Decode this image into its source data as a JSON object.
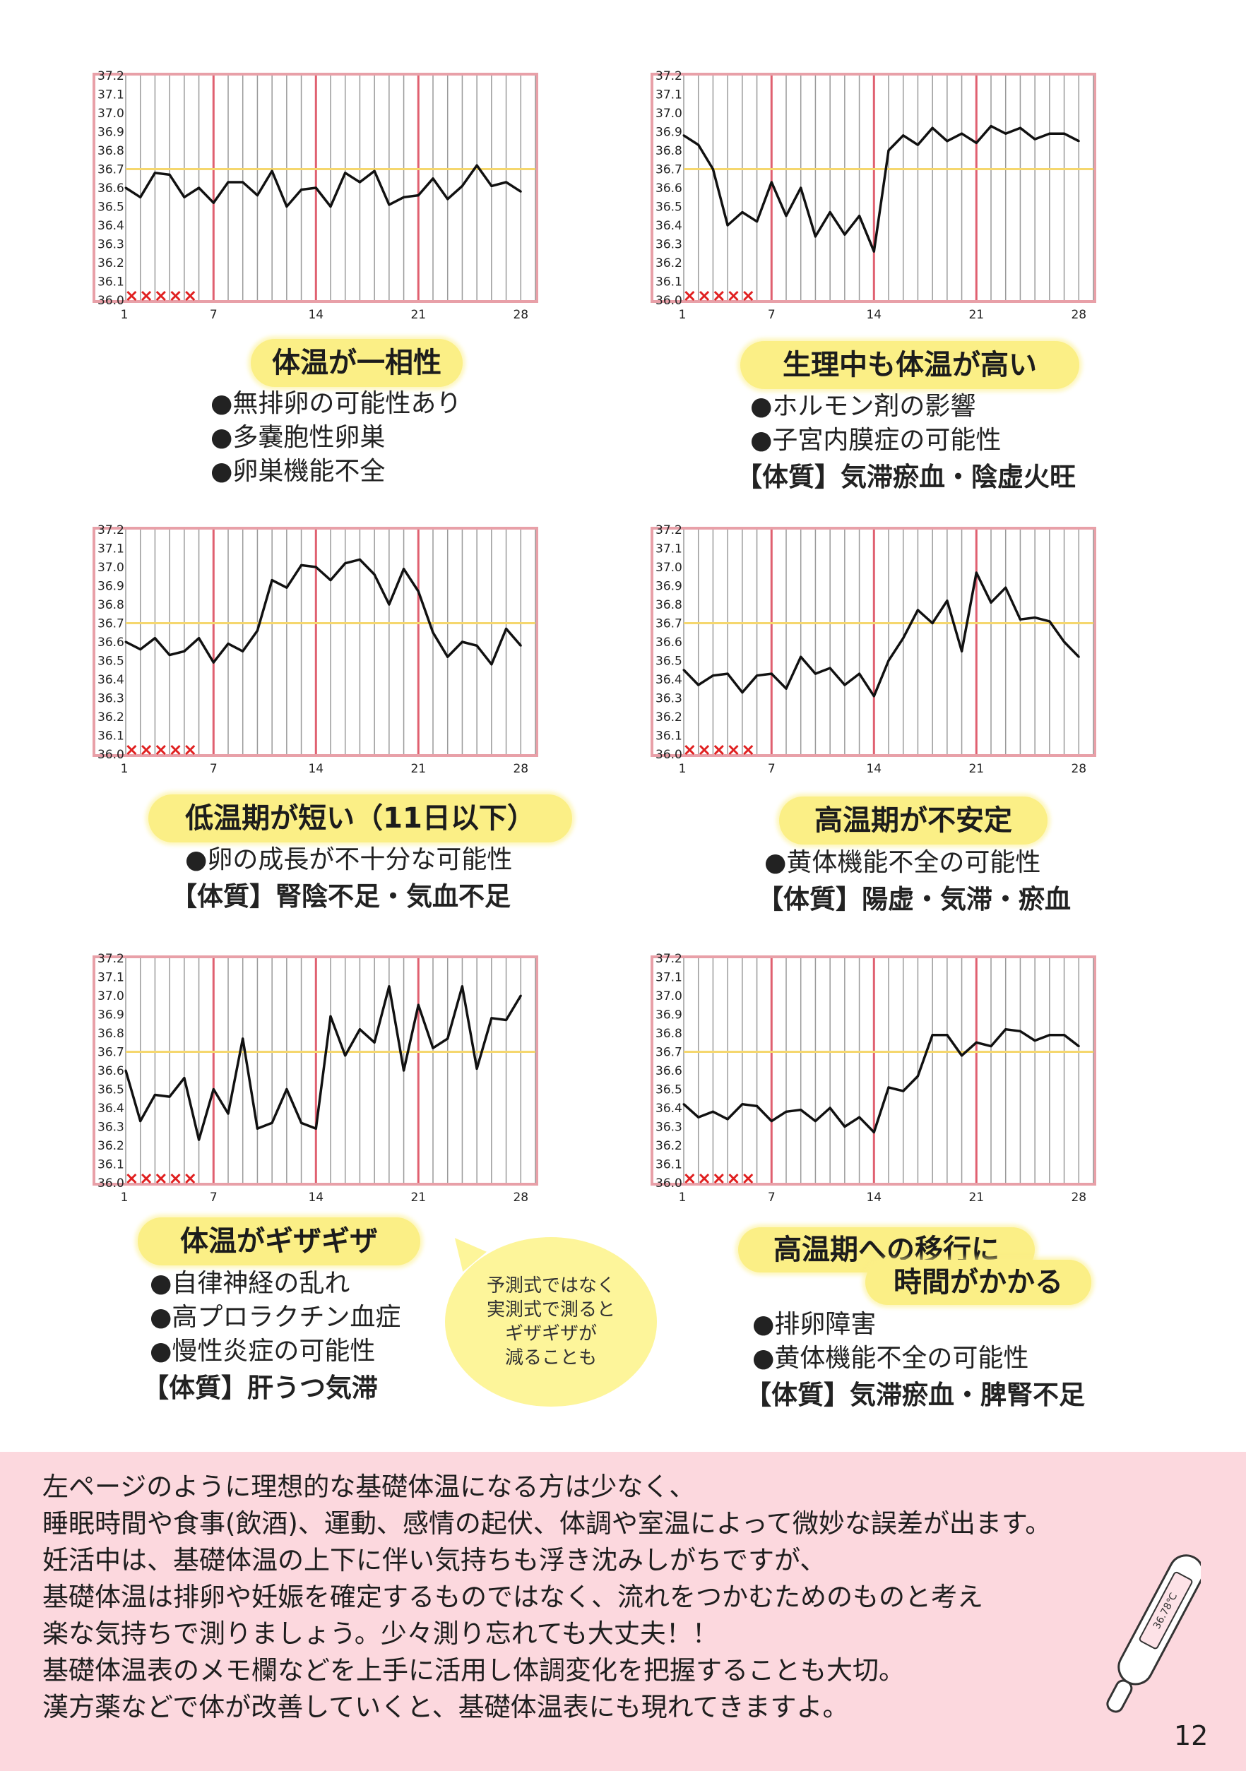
{
  "chart_data": [
    {
      "type": "line",
      "x": [
        1,
        2,
        3,
        4,
        5,
        6,
        7,
        8,
        9,
        10,
        11,
        12,
        13,
        14,
        15,
        16,
        17,
        18,
        19,
        20,
        21,
        22,
        23,
        24,
        25,
        26,
        27,
        28
      ],
      "series": [
        {
          "values": [
            36.6,
            36.55,
            36.68,
            36.67,
            36.55,
            36.6,
            36.52,
            36.63,
            36.63,
            36.56,
            36.69,
            36.5,
            36.59,
            36.6,
            36.5,
            36.68,
            36.63,
            36.69,
            36.51,
            36.55,
            36.56,
            36.65,
            36.54,
            36.61,
            36.72,
            36.61,
            36.63,
            36.58
          ]
        }
      ],
      "ylim": [
        36.0,
        37.2
      ],
      "yticks": [
        "37.2",
        "37.1",
        "37.0",
        "36.9",
        "36.8",
        "36.7",
        "36.6",
        "36.5",
        "36.4",
        "36.3",
        "36.2",
        "36.1",
        "36.0"
      ],
      "xticks": [
        "1",
        "7",
        "14",
        "21",
        "28"
      ],
      "reference_line": 36.7,
      "period_marks": 5,
      "title": "体温が一相性",
      "notes": [
        "●無排卵の可能性あり",
        "●多嚢胞性卵巣",
        "●卵巣機能不全"
      ],
      "constitution": ""
    },
    {
      "type": "line",
      "x": [
        1,
        2,
        3,
        4,
        5,
        6,
        7,
        8,
        9,
        10,
        11,
        12,
        13,
        14,
        15,
        16,
        17,
        18,
        19,
        20,
        21,
        22,
        23,
        24,
        25,
        26,
        27,
        28
      ],
      "series": [
        {
          "values": [
            36.88,
            36.83,
            36.7,
            36.4,
            36.47,
            36.42,
            36.63,
            36.45,
            36.6,
            36.34,
            36.47,
            36.35,
            36.45,
            36.26,
            36.8,
            36.88,
            36.83,
            36.92,
            36.85,
            36.89,
            36.84,
            36.93,
            36.89,
            36.92,
            36.86,
            36.89,
            36.89,
            36.85
          ]
        }
      ],
      "ylim": [
        36.0,
        37.2
      ],
      "yticks": [
        "37.2",
        "37.1",
        "37.0",
        "36.9",
        "36.8",
        "36.7",
        "36.6",
        "36.5",
        "36.4",
        "36.3",
        "36.2",
        "36.1",
        "36.0"
      ],
      "xticks": [
        "1",
        "7",
        "14",
        "21",
        "28"
      ],
      "reference_line": 36.7,
      "period_marks": 5,
      "title": "生理中も体温が高い",
      "notes": [
        "●ホルモン剤の影響",
        "●子宮内膜症の可能性"
      ],
      "constitution": "【体質】気滞瘀血・陰虚火旺"
    },
    {
      "type": "line",
      "x": [
        1,
        2,
        3,
        4,
        5,
        6,
        7,
        8,
        9,
        10,
        11,
        12,
        13,
        14,
        15,
        16,
        17,
        18,
        19,
        20,
        21,
        22,
        23,
        24,
        25,
        26,
        27,
        28
      ],
      "series": [
        {
          "values": [
            36.6,
            36.56,
            36.62,
            36.53,
            36.55,
            36.62,
            36.49,
            36.59,
            36.55,
            36.66,
            36.93,
            36.89,
            37.01,
            37.0,
            36.93,
            37.02,
            37.04,
            36.96,
            36.8,
            36.99,
            36.87,
            36.65,
            36.52,
            36.6,
            36.58,
            36.48,
            36.67,
            36.58
          ]
        }
      ],
      "ylim": [
        36.0,
        37.2
      ],
      "yticks": [
        "37.2",
        "37.1",
        "37.0",
        "36.9",
        "36.8",
        "36.7",
        "36.6",
        "36.5",
        "36.4",
        "36.3",
        "36.2",
        "36.1",
        "36.0"
      ],
      "xticks": [
        "1",
        "7",
        "14",
        "21",
        "28"
      ],
      "reference_line": 36.7,
      "period_marks": 5,
      "title": "低温期が短い（11日以下）",
      "notes": [
        "●卵の成長が不十分な可能性"
      ],
      "constitution": "【体質】腎陰不足・気血不足"
    },
    {
      "type": "line",
      "x": [
        1,
        2,
        3,
        4,
        5,
        6,
        7,
        8,
        9,
        10,
        11,
        12,
        13,
        14,
        15,
        16,
        17,
        18,
        19,
        20,
        21,
        22,
        23,
        24,
        25,
        26,
        27,
        28
      ],
      "series": [
        {
          "values": [
            36.45,
            36.37,
            36.42,
            36.43,
            36.33,
            36.42,
            36.43,
            36.35,
            36.52,
            36.43,
            36.46,
            36.37,
            36.43,
            36.31,
            36.5,
            36.62,
            36.77,
            36.7,
            36.82,
            36.55,
            36.97,
            36.81,
            36.89,
            36.72,
            36.73,
            36.71,
            36.6,
            36.52
          ]
        }
      ],
      "ylim": [
        36.0,
        37.2
      ],
      "yticks": [
        "37.2",
        "37.1",
        "37.0",
        "36.9",
        "36.8",
        "36.7",
        "36.6",
        "36.5",
        "36.4",
        "36.3",
        "36.2",
        "36.1",
        "36.0"
      ],
      "xticks": [
        "1",
        "7",
        "14",
        "21",
        "28"
      ],
      "reference_line": 36.7,
      "period_marks": 5,
      "title": "高温期が不安定",
      "notes": [
        "●黄体機能不全の可能性"
      ],
      "constitution": "【体質】陽虚・気滞・瘀血"
    },
    {
      "type": "line",
      "x": [
        1,
        2,
        3,
        4,
        5,
        6,
        7,
        8,
        9,
        10,
        11,
        12,
        13,
        14,
        15,
        16,
        17,
        18,
        19,
        20,
        21,
        22,
        23,
        24,
        25,
        26,
        27,
        28
      ],
      "series": [
        {
          "values": [
            36.6,
            36.33,
            36.47,
            36.46,
            36.56,
            36.23,
            36.5,
            36.37,
            36.77,
            36.29,
            36.32,
            36.5,
            36.32,
            36.29,
            36.89,
            36.68,
            36.82,
            36.75,
            37.05,
            36.6,
            36.95,
            36.72,
            36.77,
            37.05,
            36.61,
            36.88,
            36.87,
            37.0
          ]
        }
      ],
      "ylim": [
        36.0,
        37.2
      ],
      "yticks": [
        "37.2",
        "37.1",
        "37.0",
        "36.9",
        "36.8",
        "36.7",
        "36.6",
        "36.5",
        "36.4",
        "36.3",
        "36.2",
        "36.1",
        "36.0"
      ],
      "xticks": [
        "1",
        "7",
        "14",
        "21",
        "28"
      ],
      "reference_line": 36.7,
      "period_marks": 5,
      "title": "体温がギザギザ",
      "notes": [
        "●自律神経の乱れ",
        "●高プロラクチン血症",
        "●慢性炎症の可能性"
      ],
      "constitution": "【体質】肝うつ気滞"
    },
    {
      "type": "line",
      "x": [
        1,
        2,
        3,
        4,
        5,
        6,
        7,
        8,
        9,
        10,
        11,
        12,
        13,
        14,
        15,
        16,
        17,
        18,
        19,
        20,
        21,
        22,
        23,
        24,
        25,
        26,
        27,
        28
      ],
      "series": [
        {
          "values": [
            36.42,
            36.35,
            36.38,
            36.34,
            36.42,
            36.41,
            36.33,
            36.38,
            36.39,
            36.33,
            36.4,
            36.3,
            36.35,
            36.27,
            36.51,
            36.49,
            36.57,
            36.79,
            36.79,
            36.68,
            36.75,
            36.73,
            36.82,
            36.81,
            36.76,
            36.79,
            36.79,
            36.73
          ]
        }
      ],
      "ylim": [
        36.0,
        37.2
      ],
      "yticks": [
        "37.2",
        "37.1",
        "37.0",
        "36.9",
        "36.8",
        "36.7",
        "36.6",
        "36.5",
        "36.4",
        "36.3",
        "36.2",
        "36.1",
        "36.0"
      ],
      "xticks": [
        "1",
        "7",
        "14",
        "21",
        "28"
      ],
      "reference_line": 36.7,
      "period_marks": 5,
      "title": "高温期への移行に時間がかかる",
      "notes": [
        "●排卵障害",
        "●黄体機能不全の可能性"
      ],
      "constitution": "【体質】気滞瘀血・脾腎不足"
    }
  ],
  "titles": {
    "c1": "体温が一相性",
    "c2": "生理中も体温が高い",
    "c3": "低温期が短い（11日以下）",
    "c4": "高温期が不安定",
    "c5": "体温がギザギザ",
    "c6_line1": "高温期への移行に",
    "c6_line2": "時間がかかる"
  },
  "bubble": {
    "line1": "予測式ではなく",
    "line2": "実測式で測ると",
    "line3": "ギザギザが",
    "line4": "減ることも"
  },
  "footer": {
    "lines": [
      "左ページのように理想的な基礎体温になる方は少なく、",
      "睡眠時間や食事(飲酒)、運動、感情の起伏、体調や室温によって微妙な誤差が出ます。",
      "妊活中は、基礎体温の上下に伴い気持ちも浮き沈みしがちですが、",
      "基礎体温は排卵や妊娠を確定するものではなく、流れをつかむためのものと考え",
      "楽な気持ちで測りましょう。少々測り忘れても大丈夫！！",
      "基礎体温表のメモ欄などを上手に活用し体調変化を把握することも大切。",
      "漢方薬などで体が改善していくと、基礎体温表にも現れてきますよ。"
    ],
    "page_number": "12",
    "thermometer_reading": "36.78℃"
  },
  "colors": {
    "grid_border": "#e8a0a8",
    "week_line": "#e06070",
    "reference_line": "#f5d76e",
    "period_mark": "#e02020",
    "highlight": "#fbef86",
    "footer_bg": "#fcd8de"
  }
}
